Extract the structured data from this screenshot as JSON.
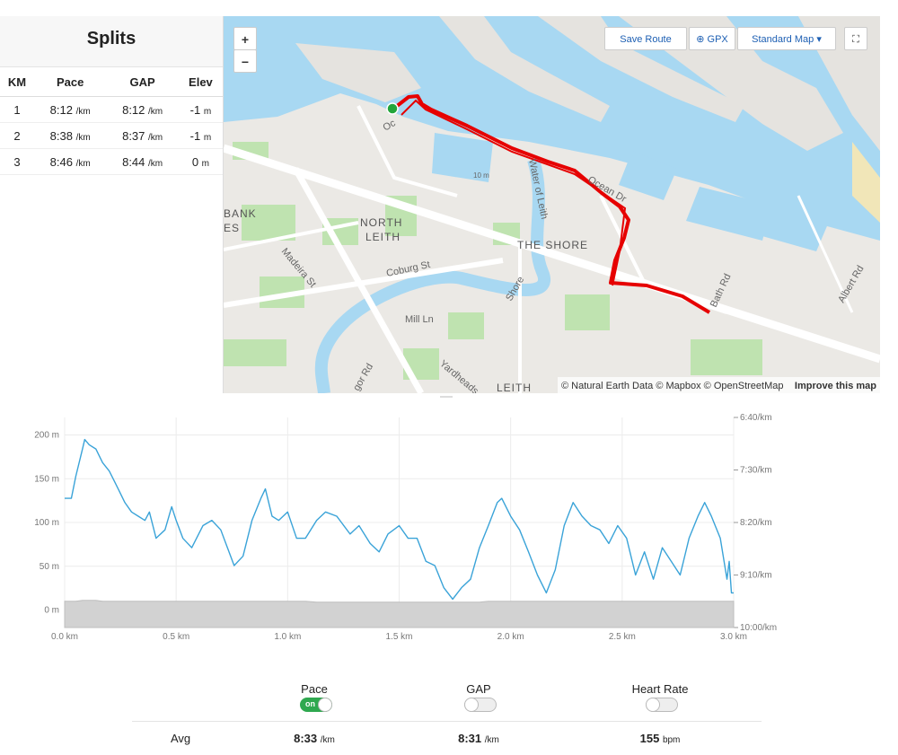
{
  "splits": {
    "title": "Splits",
    "columns": [
      "KM",
      "Pace",
      "GAP",
      "Elev"
    ],
    "units": {
      "pace": "/km",
      "elev": "m"
    },
    "rows": [
      {
        "km": "1",
        "pace": "8:12",
        "gap": "8:12",
        "elev": "-1"
      },
      {
        "km": "2",
        "pace": "8:38",
        "gap": "8:37",
        "elev": "-1"
      },
      {
        "km": "3",
        "pace": "8:46",
        "gap": "8:44",
        "elev": "0"
      }
    ]
  },
  "map": {
    "buttons": {
      "zoom_in": "+",
      "zoom_out": "−",
      "save_route": "Save Route",
      "gpx": "GPX",
      "map_style": "Standard Map"
    },
    "labels": [
      "BANK",
      "ES",
      "NORTH",
      "LEITH",
      "THE SHORE",
      "LEITH",
      "Coburg St",
      "Mill Ln",
      "Madeira St",
      "Water of Leith",
      "Shore",
      "Bath Rd",
      "Albert Rd",
      "Yardheads",
      "Ocean Dr",
      "gor Rd",
      "Oc",
      "10 m"
    ],
    "attribution": "© Natural Earth Data © Mapbox © OpenStreetMap",
    "improve": "Improve this map"
  },
  "chart_data": {
    "type": "line",
    "x": [
      0,
      0.03,
      0.05,
      0.08,
      0.09,
      0.11,
      0.14,
      0.17,
      0.2,
      0.24,
      0.27,
      0.3,
      0.33,
      0.36,
      0.38,
      0.41,
      0.45,
      0.48,
      0.5,
      0.53,
      0.57,
      0.62,
      0.66,
      0.7,
      0.73,
      0.76,
      0.8,
      0.84,
      0.88,
      0.9,
      0.93,
      0.96,
      1,
      1.04,
      1.08,
      1.13,
      1.17,
      1.22,
      1.28,
      1.32,
      1.37,
      1.41,
      1.45,
      1.5,
      1.54,
      1.58,
      1.62,
      1.66,
      1.7,
      1.74,
      1.78,
      1.82,
      1.86,
      1.9,
      1.94,
      1.96,
      2,
      2.04,
      2.08,
      2.12,
      2.16,
      2.2,
      2.24,
      2.28,
      2.32,
      2.36,
      2.4,
      2.44,
      2.48,
      2.52,
      2.56,
      2.6,
      2.64,
      2.68,
      2.72,
      2.76,
      2.8,
      2.84,
      2.87,
      2.9,
      2.94,
      2.97,
      2.98,
      2.99,
      3
    ],
    "series": [
      {
        "style": "area",
        "axis": "y",
        "color": "#d2d2d2",
        "values": [
          10,
          10,
          10,
          11,
          11,
          11,
          11,
          10,
          10,
          10,
          10,
          10,
          10,
          10,
          10,
          10,
          10,
          10,
          10,
          10,
          10,
          10,
          10,
          10,
          10,
          10,
          10,
          10,
          10,
          10,
          10,
          10,
          10,
          10,
          10,
          9,
          9,
          9,
          9,
          9,
          9,
          9,
          9,
          9,
          9,
          9,
          9,
          9,
          9,
          9,
          9,
          9,
          9,
          10,
          10,
          10,
          10,
          10,
          10,
          10,
          10,
          10,
          10,
          10,
          10,
          10,
          10,
          10,
          10,
          10,
          10,
          10,
          10,
          10,
          10,
          10,
          10,
          10,
          10,
          10,
          10,
          10,
          10,
          10,
          10
        ]
      },
      {
        "style": "line",
        "axis": "y2",
        "color": "#3aa3d8",
        "values": [
          477,
          477,
          456,
          430,
          421,
          426,
          430,
          443,
          451,
          468,
          481,
          490,
          494,
          498,
          490,
          515,
          507,
          485,
          498,
          515,
          524,
          503,
          498,
          507,
          524,
          541,
          532,
          498,
          477,
          468,
          494,
          498,
          490,
          515,
          515,
          498,
          490,
          494,
          511,
          503,
          520,
          528,
          511,
          503,
          515,
          515,
          537,
          541,
          562,
          573,
          562,
          554,
          524,
          503,
          481,
          477,
          494,
          507,
          528,
          550,
          567,
          545,
          503,
          481,
          494,
          503,
          507,
          520,
          503,
          515,
          550,
          528,
          554,
          524,
          537,
          550,
          515,
          494,
          481,
          494,
          515,
          554,
          537,
          567,
          567
        ]
      }
    ],
    "xlim": [
      0,
      3
    ],
    "xticks": [
      {
        "value": 0,
        "label": "0.0 km"
      },
      {
        "value": 0.5,
        "label": "0.5 km"
      },
      {
        "value": 1,
        "label": "1.0 km"
      },
      {
        "value": 1.5,
        "label": "1.5 km"
      },
      {
        "value": 2,
        "label": "2.0 km"
      },
      {
        "value": 2.5,
        "label": "2.5 km"
      },
      {
        "value": 3,
        "label": "3.0 km"
      }
    ],
    "ylim": [
      -20,
      220
    ],
    "yticks": [
      {
        "value": 0,
        "label": "0 m"
      },
      {
        "value": 50,
        "label": "50 m"
      },
      {
        "value": 100,
        "label": "100 m"
      },
      {
        "value": 150,
        "label": "150 m"
      },
      {
        "value": 200,
        "label": "200 m"
      }
    ],
    "y2lim": [
      600,
      400
    ],
    "y2ticks": [
      {
        "value": 400,
        "label": "6:40/km"
      },
      {
        "value": 450,
        "label": "7:30/km"
      },
      {
        "value": 500,
        "label": "8:20/km"
      },
      {
        "value": 550,
        "label": "9:10/km"
      },
      {
        "value": 600,
        "label": "10:00/km"
      }
    ],
    "grid": true
  },
  "controls": [
    {
      "label": "Pace",
      "state": "on"
    },
    {
      "label": "GAP"
    },
    {
      "label": "Heart Rate"
    }
  ],
  "averages": {
    "label": "Avg",
    "values": [
      {
        "value": "8:33",
        "unit": "/km"
      },
      {
        "value": "8:31",
        "unit": "/km"
      },
      {
        "value": "155",
        "unit": "bpm"
      }
    ]
  }
}
